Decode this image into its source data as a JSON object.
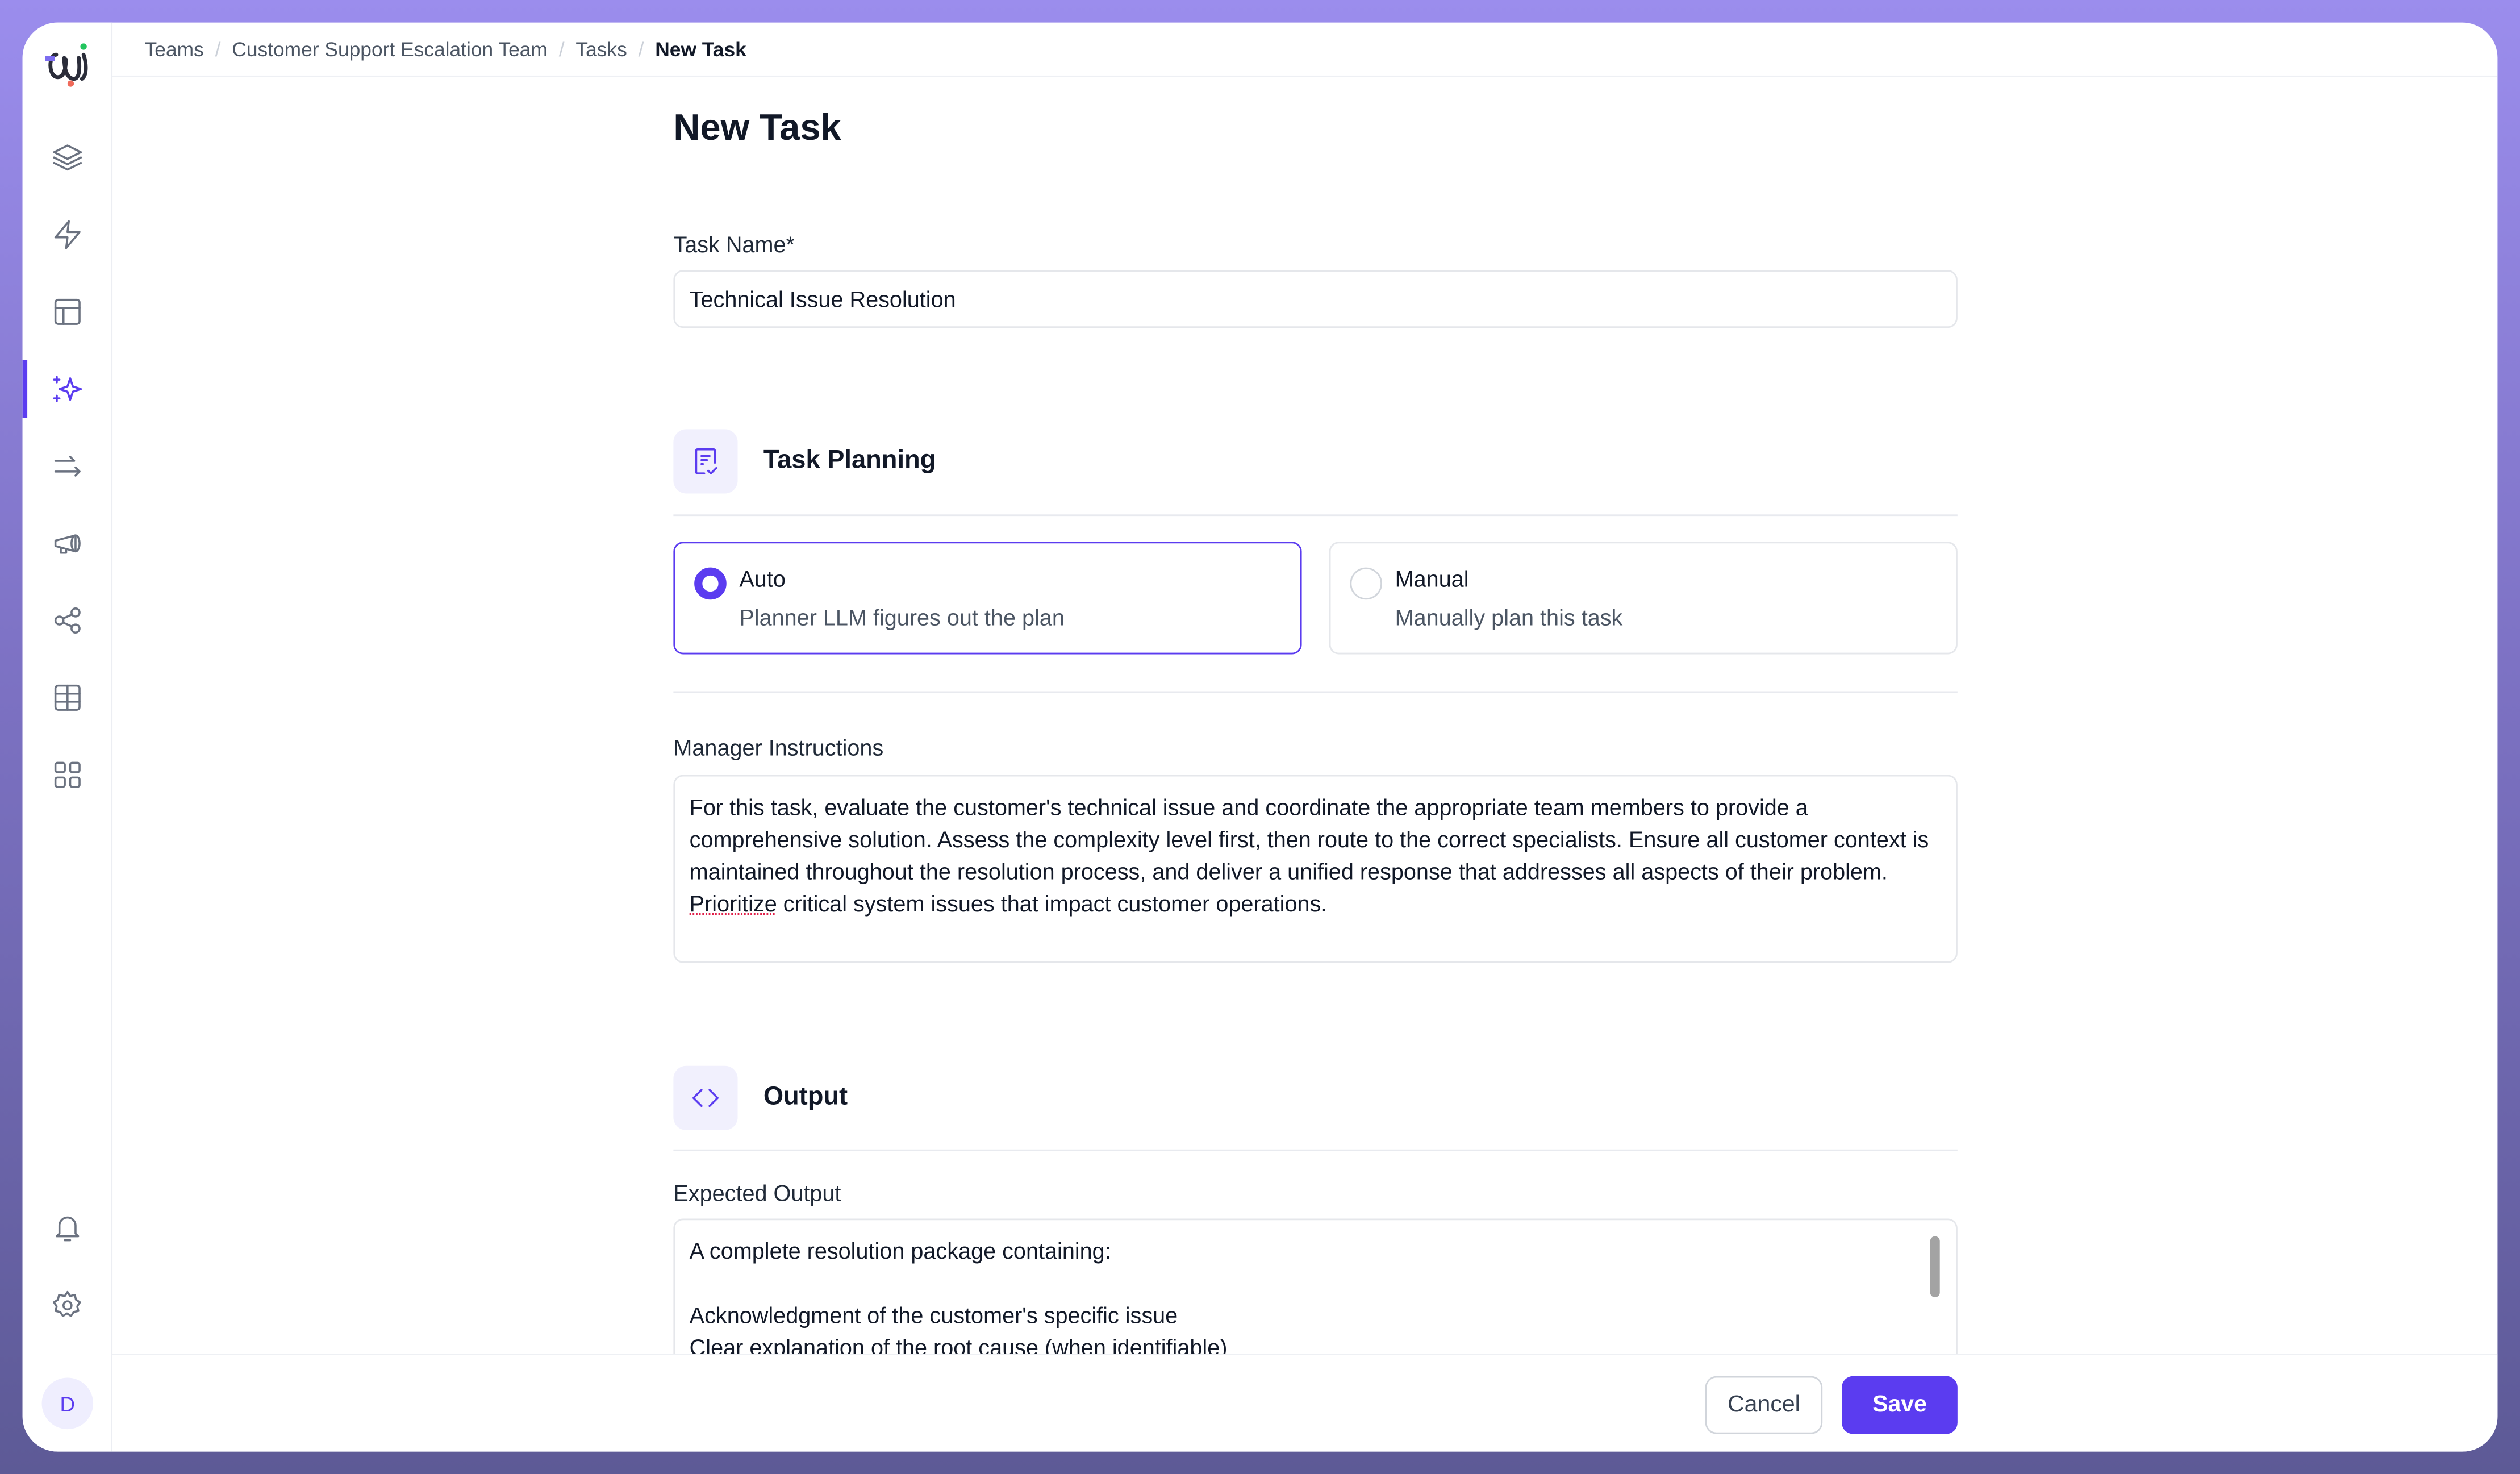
{
  "app": {
    "accent": "#5b3cf0",
    "user_initial": "D"
  },
  "sidebar": {
    "items": [
      {
        "icon": "layers-icon"
      },
      {
        "icon": "lightning-icon"
      },
      {
        "icon": "layout-icon"
      },
      {
        "icon": "sparkles-icon",
        "active": true
      },
      {
        "icon": "arrows-right-icon"
      },
      {
        "icon": "megaphone-icon"
      },
      {
        "icon": "share-nodes-icon"
      },
      {
        "icon": "table-icon"
      },
      {
        "icon": "grid-icon"
      }
    ],
    "bottom": [
      {
        "icon": "bell-icon"
      },
      {
        "icon": "gear-icon"
      }
    ]
  },
  "breadcrumb": [
    "Teams",
    "Customer Support Escalation Team",
    "Tasks",
    "New Task"
  ],
  "page": {
    "title": "New Task"
  },
  "form": {
    "task_name_label": "Task Name*",
    "task_name_value": "Technical Issue Resolution",
    "planning": {
      "title": "Task Planning",
      "options": [
        {
          "title": "Auto",
          "desc": "Planner LLM figures out the plan",
          "selected": true
        },
        {
          "title": "Manual",
          "desc": "Manually plan this task",
          "selected": false
        }
      ]
    },
    "manager_label": "Manager Instructions",
    "manager_value_a": "For this task, evaluate the customer's technical issue and coordinate the appropriate team members to provide a comprehensive solution. Assess the complexity level first, then route to the correct specialists. Ensure all customer context is maintained throughout the resolution process, and deliver a unified response that addresses all aspects of their problem. ",
    "manager_value_spell": "Prioritize",
    "manager_value_b": " critical system issues that impact customer operations.",
    "output": {
      "title": "Output"
    },
    "expected_label": "Expected Output",
    "expected_value": "A complete resolution package containing:\n\nAcknowledgment of the customer's specific issue\nClear explanation of the root cause (when identifiable)\nStep-by-step troubleshooting instructions with visual aids"
  },
  "footer": {
    "cancel": "Cancel",
    "save": "Save"
  }
}
